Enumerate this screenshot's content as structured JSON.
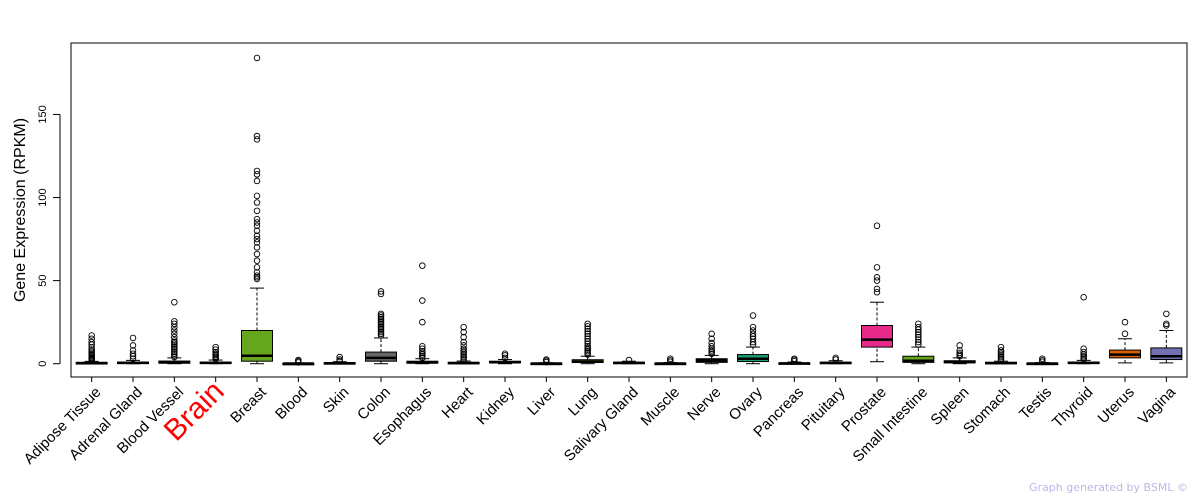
{
  "chart_data": {
    "type": "boxplot",
    "ylabel": "Gene Expression (RPKM)",
    "yticks": [
      0,
      50,
      100,
      150
    ],
    "ylim": [
      -8,
      193
    ],
    "highlight_category": "Brain",
    "highlight_color": "#ff0000",
    "grid": false,
    "categories": [
      {
        "name": "Adipose Tissue",
        "color": "#000000",
        "q1": 0.2,
        "median": 0.4,
        "q3": 0.7,
        "lo": 0,
        "hi": 1.4,
        "outliers": [
          1.8,
          2.3,
          3,
          3.6,
          4.3,
          5,
          5.8,
          6.6,
          7.5,
          8.5,
          9.8,
          11.5,
          13,
          15,
          17
        ]
      },
      {
        "name": "Adrenal Gland",
        "color": "#000000",
        "q1": 0.2,
        "median": 0.5,
        "q3": 1.0,
        "lo": 0,
        "hi": 2,
        "outliers": [
          3,
          4.5,
          6,
          8,
          11,
          15.5
        ]
      },
      {
        "name": "Blood Vessel",
        "color": "#000000",
        "q1": 0.3,
        "median": 0.8,
        "q3": 1.6,
        "lo": 0,
        "hi": 3.5,
        "outliers": [
          4,
          5,
          6,
          7,
          8,
          9,
          10,
          11,
          12,
          13,
          14,
          16,
          18,
          20,
          22,
          24,
          25.5,
          37
        ]
      },
      {
        "name": "Brain",
        "color": "#000000",
        "q1": 0.2,
        "median": 0.5,
        "q3": 1.0,
        "lo": 0,
        "hi": 2.2,
        "outliers": [
          2.8,
          3.5,
          4.3,
          5.2,
          6,
          7,
          8.5,
          10
        ]
      },
      {
        "name": "Breast",
        "color": "#66a61e",
        "q1": 1.5,
        "median": 4.8,
        "q3": 20,
        "lo": 0,
        "hi": 45.5,
        "outliers": [
          51,
          52,
          53,
          55,
          58,
          62,
          66,
          70,
          73,
          75,
          77,
          80,
          83,
          85,
          87,
          92,
          97,
          101,
          110,
          114,
          116,
          135,
          137,
          184
        ]
      },
      {
        "name": "Blood",
        "color": "#000000",
        "q1": 0.05,
        "median": 0.1,
        "q3": 0.2,
        "lo": 0,
        "hi": 0.4,
        "outliers": [
          0.8,
          1.5,
          2.2
        ]
      },
      {
        "name": "Skin",
        "color": "#000000",
        "q1": 0.1,
        "median": 0.3,
        "q3": 0.6,
        "lo": 0,
        "hi": 1.2,
        "outliers": [
          1.6,
          2.5,
          4
        ]
      },
      {
        "name": "Colon",
        "color": "#666666",
        "q1": 1.5,
        "median": 3.5,
        "q3": 7.0,
        "lo": 0,
        "hi": 15.5,
        "outliers": [
          17,
          18,
          19,
          20,
          21,
          22,
          23,
          24,
          25,
          26,
          27,
          28,
          29,
          30,
          42,
          43.5
        ]
      },
      {
        "name": "Esophagus",
        "color": "#000000",
        "q1": 0.3,
        "median": 0.8,
        "q3": 1.5,
        "lo": 0,
        "hi": 3,
        "outliers": [
          3.5,
          4.5,
          5.5,
          6.5,
          7.5,
          9,
          10.5,
          25,
          38,
          59
        ]
      },
      {
        "name": "Heart",
        "color": "#000000",
        "q1": 0.2,
        "median": 0.4,
        "q3": 0.8,
        "lo": 0,
        "hi": 1.6,
        "outliers": [
          2,
          3,
          4,
          5,
          6,
          7,
          8,
          9,
          11,
          13,
          16,
          19,
          22
        ]
      },
      {
        "name": "Kidney",
        "color": "#000000",
        "q1": 0.5,
        "median": 0.9,
        "q3": 1.5,
        "lo": 0,
        "hi": 2.5,
        "outliers": [
          3.5,
          5,
          6
        ]
      },
      {
        "name": "Liver",
        "color": "#000000",
        "q1": 0.05,
        "median": 0.15,
        "q3": 0.3,
        "lo": 0,
        "hi": 0.6,
        "outliers": [
          1,
          1.8,
          2.5
        ]
      },
      {
        "name": "Lung",
        "color": "#e6ab02",
        "q1": 0.7,
        "median": 1.3,
        "q3": 2.4,
        "lo": 0,
        "hi": 4.5,
        "outliers": [
          5.5,
          6.5,
          7.5,
          8.5,
          9.5,
          10.5,
          12,
          13.5,
          15,
          16.5,
          18,
          19.5,
          21,
          22.5,
          24
        ]
      },
      {
        "name": "Salivary Gland",
        "color": "#000000",
        "q1": 0.2,
        "median": 0.5,
        "q3": 0.9,
        "lo": 0,
        "hi": 1.5,
        "outliers": [
          2.2
        ]
      },
      {
        "name": "Muscle",
        "color": "#000000",
        "q1": 0.05,
        "median": 0.1,
        "q3": 0.3,
        "lo": 0,
        "hi": 0.7,
        "outliers": [
          1.2,
          2,
          3
        ]
      },
      {
        "name": "Nerve",
        "color": "#000000",
        "q1": 0.8,
        "median": 1.8,
        "q3": 3.0,
        "lo": 0,
        "hi": 5,
        "outliers": [
          6,
          7,
          8,
          9,
          10.5,
          12.5,
          15,
          18
        ]
      },
      {
        "name": "Ovary",
        "color": "#1b9e77",
        "q1": 1.3,
        "median": 3.0,
        "q3": 5.5,
        "lo": 0,
        "hi": 10,
        "outliers": [
          11.5,
          13,
          15,
          16.5,
          18,
          20,
          22,
          29
        ]
      },
      {
        "name": "Pancreas",
        "color": "#000000",
        "q1": 0.05,
        "median": 0.2,
        "q3": 0.5,
        "lo": 0,
        "hi": 1.0,
        "outliers": [
          1.5,
          2.3,
          3
        ]
      },
      {
        "name": "Pituitary",
        "color": "#000000",
        "q1": 0.2,
        "median": 0.5,
        "q3": 0.9,
        "lo": 0,
        "hi": 1.8,
        "outliers": [
          2.5,
          3.5
        ]
      },
      {
        "name": "Prostate",
        "color": "#e7298a",
        "q1": 10,
        "median": 14.5,
        "q3": 23,
        "lo": 1.2,
        "hi": 37,
        "outliers": [
          43,
          45,
          50,
          52,
          58,
          83
        ]
      },
      {
        "name": "Small Intestine",
        "color": "#66a61e",
        "q1": 0.8,
        "median": 1.8,
        "q3": 4.5,
        "lo": 0,
        "hi": 10,
        "outliers": [
          11.5,
          13,
          14.5,
          16,
          17.5,
          19,
          20.5,
          22,
          24
        ]
      },
      {
        "name": "Spleen",
        "color": "#000000",
        "q1": 0.5,
        "median": 1.0,
        "q3": 1.8,
        "lo": 0,
        "hi": 3.5,
        "outliers": [
          4.5,
          5.5,
          6.5,
          8,
          11
        ]
      },
      {
        "name": "Stomach",
        "color": "#000000",
        "q1": 0.2,
        "median": 0.4,
        "q3": 0.8,
        "lo": 0,
        "hi": 1.5,
        "outliers": [
          2,
          3,
          4,
          5,
          6,
          7,
          8,
          10
        ]
      },
      {
        "name": "Testis",
        "color": "#000000",
        "q1": 0.05,
        "median": 0.1,
        "q3": 0.3,
        "lo": 0,
        "hi": 0.7,
        "outliers": [
          1.2,
          2,
          3
        ]
      },
      {
        "name": "Thyroid",
        "color": "#000000",
        "q1": 0.2,
        "median": 0.5,
        "q3": 1.0,
        "lo": 0,
        "hi": 2,
        "outliers": [
          2.8,
          3.6,
          4.5,
          5.5,
          7,
          9,
          40
        ]
      },
      {
        "name": "Uterus",
        "color": "#d95f02",
        "q1": 3.5,
        "median": 5.5,
        "q3": 8.2,
        "lo": 0.5,
        "hi": 15,
        "outliers": [
          18,
          25
        ]
      },
      {
        "name": "Vagina",
        "color": "#7570b3",
        "q1": 2.5,
        "median": 4.5,
        "q3": 9.5,
        "lo": 0.5,
        "hi": 20,
        "outliers": [
          23,
          24,
          30
        ]
      }
    ]
  },
  "footer": "Graph generated by BSML ©"
}
